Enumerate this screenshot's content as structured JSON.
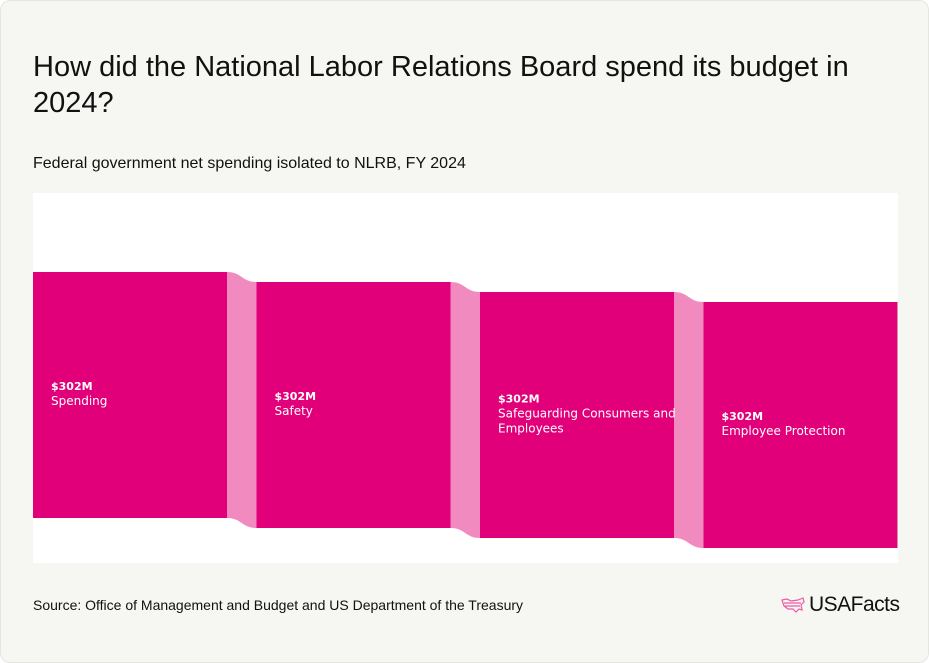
{
  "title": "How did the National Labor Relations Board spend its budget in 2024?",
  "subtitle": "Federal government net spending isolated to NLRB, FY 2024",
  "source": "Source: Office of Management and Budget and US Department of the Treasury",
  "logo": "USAFacts",
  "colors": {
    "node": "#e2007a",
    "link": "#f08abf",
    "background": "#f6f6f2"
  },
  "chart_data": {
    "type": "sankey",
    "title": "How did the National Labor Relations Board spend its budget in 2024?",
    "unit": "USD millions",
    "nodes": [
      {
        "name": "Spending",
        "value": 302,
        "value_label": "$302M",
        "label_lines": [
          "Spending"
        ]
      },
      {
        "name": "Safety",
        "value": 302,
        "value_label": "$302M",
        "label_lines": [
          "Safety"
        ]
      },
      {
        "name": "Safeguarding Consumers and Employees",
        "value": 302,
        "value_label": "$302M",
        "label_lines": [
          "Safeguarding Consumers and",
          "Employees"
        ]
      },
      {
        "name": "Employee Protection",
        "value": 302,
        "value_label": "$302M",
        "label_lines": [
          "Employee Protection"
        ]
      }
    ],
    "links": [
      {
        "source": "Spending",
        "target": "Safety",
        "value": 302
      },
      {
        "source": "Safety",
        "target": "Safeguarding Consumers and Employees",
        "value": 302
      },
      {
        "source": "Safeguarding Consumers and Employees",
        "target": "Employee Protection",
        "value": 302
      }
    ]
  }
}
